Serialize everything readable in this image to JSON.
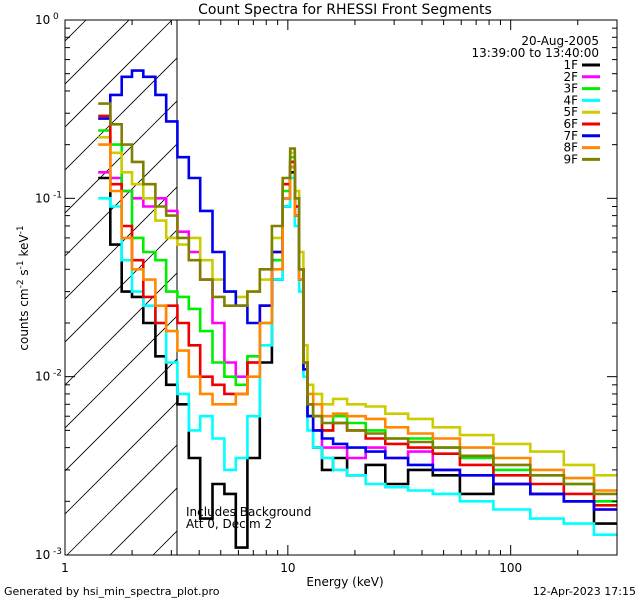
{
  "chart_data": {
    "type": "line",
    "title": "Count Spectra for RHESSI Front Segments",
    "xlabel": "Energy (keV)",
    "ylabel": "counts cm-2 s-1 keV-1",
    "x_scale": "log",
    "y_scale": "log",
    "xlim": [
      1,
      300
    ],
    "ylim": [
      0.001,
      1
    ],
    "x_ticks": [
      {
        "value": 1,
        "label": "1"
      },
      {
        "value": 10,
        "label": "10"
      },
      {
        "value": 100,
        "label": "100"
      }
    ],
    "y_ticks": [
      {
        "value": 0.001,
        "base": "10",
        "exp": "-3"
      },
      {
        "value": 0.01,
        "base": "10",
        "exp": "-2"
      },
      {
        "value": 0.1,
        "base": "10",
        "exp": "-1"
      },
      {
        "value": 1,
        "base": "10",
        "exp": "0"
      }
    ],
    "annotations": {
      "date": "20-Aug-2005",
      "time_range": "13:39:00 to 13:40:00",
      "background_note": "Includes Background",
      "attenuator_note": "Att 0, Decim 2"
    },
    "shaded_region": {
      "x_start": 1,
      "x_end": 3,
      "note": "hatched low-energy region"
    },
    "series": [
      {
        "name": "1F",
        "color": "#000000",
        "x": [
          1.5,
          1.7,
          1.9,
          2.1,
          2.4,
          2.7,
          3.0,
          3.4,
          3.8,
          4.3,
          4.9,
          5.5,
          6.2,
          7.0,
          8.0,
          9.0,
          10.0,
          10.5,
          11.0,
          11.5,
          12.0,
          12.5,
          13.5,
          15,
          17,
          20,
          25,
          30,
          40,
          50,
          70,
          100,
          150,
          200,
          280
        ],
        "values": [
          0.13,
          0.055,
          0.03,
          0.028,
          0.02,
          0.013,
          0.009,
          0.007,
          0.0035,
          0.0016,
          0.0025,
          0.0022,
          0.0011,
          0.0035,
          0.012,
          0.035,
          0.09,
          0.14,
          0.08,
          0.035,
          0.011,
          0.006,
          0.004,
          0.003,
          0.0035,
          0.0028,
          0.0032,
          0.0025,
          0.003,
          0.0028,
          0.0022,
          0.0025,
          0.0022,
          0.002,
          0.0015
        ]
      },
      {
        "name": "2F",
        "color": "#ff00ff",
        "x": [
          1.5,
          1.7,
          1.9,
          2.1,
          2.4,
          2.7,
          3.0,
          3.4,
          3.8,
          4.3,
          4.9,
          5.5,
          6.2,
          7.0,
          8.0,
          9.0,
          10.0,
          10.5,
          11.0,
          11.5,
          12.0,
          12.5,
          13.5,
          15,
          17,
          20,
          25,
          30,
          40,
          50,
          70,
          100,
          150,
          200,
          280
        ],
        "values": [
          0.14,
          0.13,
          0.11,
          0.1,
          0.09,
          0.1,
          0.085,
          0.065,
          0.05,
          0.035,
          0.02,
          0.012,
          0.01,
          0.012,
          0.025,
          0.045,
          0.1,
          0.16,
          0.09,
          0.04,
          0.012,
          0.006,
          0.005,
          0.004,
          0.004,
          0.0035,
          0.004,
          0.0035,
          0.0038,
          0.003,
          0.0028,
          0.0025,
          0.0022,
          0.002,
          0.0018
        ]
      },
      {
        "name": "3F",
        "color": "#00ee00",
        "x": [
          1.5,
          1.7,
          1.9,
          2.1,
          2.4,
          2.7,
          3.0,
          3.4,
          3.8,
          4.3,
          4.9,
          5.5,
          6.2,
          7.0,
          8.0,
          9.0,
          10.0,
          10.5,
          11.0,
          11.5,
          12.0,
          12.5,
          13.5,
          15,
          17,
          20,
          25,
          30,
          40,
          50,
          70,
          100,
          150,
          200,
          280
        ],
        "values": [
          0.24,
          0.2,
          0.11,
          0.06,
          0.05,
          0.045,
          0.03,
          0.028,
          0.024,
          0.018,
          0.012,
          0.01,
          0.009,
          0.013,
          0.02,
          0.045,
          0.11,
          0.17,
          0.1,
          0.04,
          0.012,
          0.007,
          0.006,
          0.005,
          0.006,
          0.0055,
          0.005,
          0.0045,
          0.0045,
          0.004,
          0.0035,
          0.003,
          0.0028,
          0.0025,
          0.002
        ]
      },
      {
        "name": "4F",
        "color": "#00ffff",
        "x": [
          1.5,
          1.7,
          1.9,
          2.1,
          2.4,
          2.7,
          3.0,
          3.4,
          3.8,
          4.3,
          4.9,
          5.5,
          6.2,
          7.0,
          8.0,
          9.0,
          10.0,
          10.5,
          11.0,
          11.5,
          12.0,
          12.5,
          13.5,
          15,
          17,
          20,
          25,
          30,
          40,
          50,
          70,
          100,
          150,
          200,
          280
        ],
        "values": [
          0.1,
          0.09,
          0.045,
          0.03,
          0.025,
          0.02,
          0.012,
          0.008,
          0.005,
          0.006,
          0.0045,
          0.003,
          0.0035,
          0.006,
          0.015,
          0.035,
          0.09,
          0.13,
          0.07,
          0.03,
          0.01,
          0.005,
          0.004,
          0.0035,
          0.003,
          0.0028,
          0.0025,
          0.0024,
          0.0023,
          0.0022,
          0.002,
          0.0018,
          0.0016,
          0.0015,
          0.0013
        ]
      },
      {
        "name": "5F",
        "color": "#cccc00",
        "x": [
          1.5,
          1.7,
          1.9,
          2.1,
          2.4,
          2.7,
          3.0,
          3.4,
          3.8,
          4.3,
          4.9,
          5.5,
          6.2,
          7.0,
          8.0,
          9.0,
          10.0,
          10.5,
          11.0,
          11.5,
          12.0,
          12.5,
          13.5,
          15,
          17,
          20,
          25,
          30,
          40,
          50,
          70,
          100,
          150,
          200,
          280
        ],
        "values": [
          0.22,
          0.18,
          0.14,
          0.12,
          0.1,
          0.075,
          0.06,
          0.055,
          0.06,
          0.045,
          0.035,
          0.03,
          0.028,
          0.03,
          0.035,
          0.06,
          0.12,
          0.18,
          0.11,
          0.05,
          0.015,
          0.009,
          0.008,
          0.007,
          0.0075,
          0.007,
          0.0068,
          0.0062,
          0.0058,
          0.0052,
          0.0047,
          0.0042,
          0.0038,
          0.0032,
          0.0028
        ]
      },
      {
        "name": "6F",
        "color": "#ee0000",
        "x": [
          1.5,
          1.7,
          1.9,
          2.1,
          2.4,
          2.7,
          3.0,
          3.4,
          3.8,
          4.3,
          4.9,
          5.5,
          6.2,
          7.0,
          8.0,
          9.0,
          10.0,
          10.5,
          11.0,
          11.5,
          12.0,
          12.5,
          13.5,
          15,
          17,
          20,
          25,
          30,
          40,
          50,
          70,
          100,
          150,
          200,
          280
        ],
        "values": [
          0.29,
          0.12,
          0.07,
          0.045,
          0.028,
          0.02,
          0.025,
          0.02,
          0.015,
          0.01,
          0.009,
          0.008,
          0.008,
          0.012,
          0.025,
          0.05,
          0.12,
          0.16,
          0.09,
          0.04,
          0.012,
          0.007,
          0.006,
          0.005,
          0.0055,
          0.005,
          0.0045,
          0.0042,
          0.004,
          0.0037,
          0.0032,
          0.0028,
          0.0025,
          0.0022,
          0.0019
        ]
      },
      {
        "name": "7F",
        "color": "#0000ee",
        "x": [
          1.5,
          1.7,
          1.9,
          2.1,
          2.4,
          2.7,
          3.0,
          3.4,
          3.8,
          4.3,
          4.9,
          5.5,
          6.2,
          7.0,
          8.0,
          9.0,
          10.0,
          10.5,
          11.0,
          11.5,
          12.0,
          12.5,
          13.5,
          15,
          17,
          20,
          25,
          30,
          40,
          50,
          70,
          100,
          150,
          200,
          280
        ],
        "values": [
          0.28,
          0.38,
          0.48,
          0.52,
          0.48,
          0.38,
          0.27,
          0.17,
          0.13,
          0.085,
          0.05,
          0.03,
          0.025,
          0.02,
          0.025,
          0.05,
          0.1,
          0.15,
          0.08,
          0.035,
          0.011,
          0.006,
          0.005,
          0.0045,
          0.0042,
          0.004,
          0.0038,
          0.0035,
          0.0032,
          0.003,
          0.0028,
          0.0025,
          0.0022,
          0.002,
          0.0018
        ]
      },
      {
        "name": "8F",
        "color": "#ff8800",
        "x": [
          1.5,
          1.7,
          1.9,
          2.1,
          2.4,
          2.7,
          3.0,
          3.4,
          3.8,
          4.3,
          4.9,
          5.5,
          6.2,
          7.0,
          8.0,
          9.0,
          10.0,
          10.5,
          11.0,
          11.5,
          12.0,
          12.5,
          13.5,
          15,
          17,
          20,
          25,
          30,
          40,
          50,
          70,
          100,
          150,
          200,
          280
        ],
        "values": [
          0.2,
          0.11,
          0.06,
          0.04,
          0.035,
          0.025,
          0.018,
          0.014,
          0.01,
          0.008,
          0.007,
          0.007,
          0.008,
          0.01,
          0.02,
          0.04,
          0.1,
          0.15,
          0.08,
          0.035,
          0.012,
          0.008,
          0.007,
          0.006,
          0.0062,
          0.006,
          0.0058,
          0.0052,
          0.0048,
          0.0045,
          0.004,
          0.0035,
          0.003,
          0.0027,
          0.0023
        ]
      },
      {
        "name": "9F",
        "color": "#808000",
        "x": [
          1.5,
          1.7,
          1.9,
          2.1,
          2.4,
          2.7,
          3.0,
          3.4,
          3.8,
          4.3,
          4.9,
          5.5,
          6.2,
          7.0,
          8.0,
          9.0,
          10.0,
          10.5,
          11.0,
          11.5,
          12.0,
          12.5,
          13.5,
          15,
          17,
          20,
          25,
          30,
          40,
          50,
          70,
          100,
          150,
          200,
          280
        ],
        "values": [
          0.34,
          0.26,
          0.2,
          0.16,
          0.12,
          0.09,
          0.08,
          0.06,
          0.045,
          0.035,
          0.028,
          0.025,
          0.025,
          0.03,
          0.04,
          0.07,
          0.13,
          0.19,
          0.1,
          0.04,
          0.012,
          0.007,
          0.006,
          0.0055,
          0.0055,
          0.005,
          0.0048,
          0.0045,
          0.0043,
          0.004,
          0.0036,
          0.0032,
          0.0028,
          0.0025,
          0.0022
        ]
      }
    ]
  },
  "footer": {
    "generated_by": "Generated by hsi_min_spectra_plot.pro",
    "timestamp": "12-Apr-2023 17:15"
  }
}
